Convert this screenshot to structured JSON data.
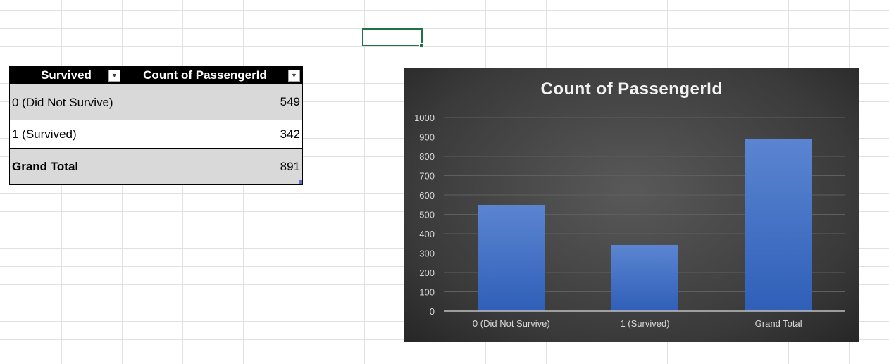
{
  "sheet": {
    "pivot_table": {
      "headers": [
        "Survived",
        "Count of PassengerId"
      ],
      "rows": [
        {
          "label": "0 (Did Not Survive)",
          "value": "549"
        },
        {
          "label": "1 (Survived)",
          "value": "342"
        },
        {
          "label": "Grand Total",
          "value": "891"
        }
      ]
    }
  },
  "chart_data": {
    "type": "bar",
    "title": "Count of PassengerId",
    "categories": [
      "0 (Did Not Survive)",
      "1 (Survived)",
      "Grand Total"
    ],
    "values": [
      549,
      342,
      891
    ],
    "ylim": [
      0,
      1000
    ],
    "yticks": [
      0,
      100,
      200,
      300,
      400,
      500,
      600,
      700,
      800,
      900,
      1000
    ],
    "grid": true,
    "legend": "none",
    "bar_color": "#4472c4",
    "background_color": "#404040"
  }
}
